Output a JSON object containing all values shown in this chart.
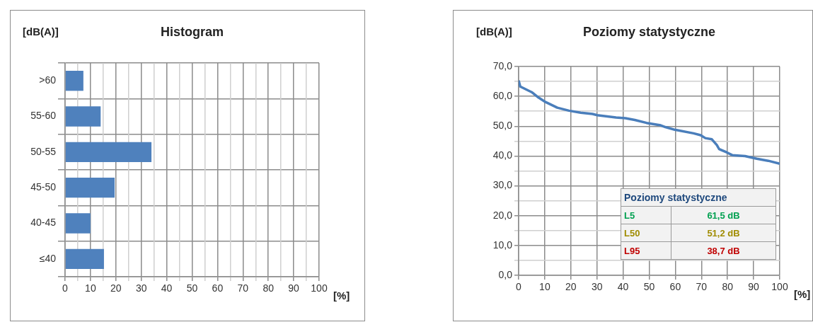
{
  "chart_data": [
    {
      "type": "bar",
      "orientation": "horizontal",
      "title": "Histogram",
      "ylabel": "[dB(A)]",
      "xlabel": "[%]",
      "categories": [
        ">60",
        "55-60",
        "50-55",
        "45-50",
        "40-45",
        "≤40"
      ],
      "series": [
        {
          "color": "#4f81bd",
          "values": [
            7.2,
            14,
            34,
            19.5,
            10,
            15.3
          ]
        }
      ],
      "xlim": [
        0,
        100
      ],
      "xticks": [
        0,
        {
          "value": 5,
          "label": null
        },
        10,
        {
          "value": 15,
          "label": null
        },
        20,
        {
          "value": 25,
          "label": null
        },
        30,
        {
          "value": 35,
          "label": null
        },
        40,
        {
          "value": 45,
          "label": null
        },
        50,
        {
          "value": 55,
          "label": null
        },
        60,
        {
          "value": 65,
          "label": null
        },
        70,
        {
          "value": 75,
          "label": null
        },
        80,
        {
          "value": 85,
          "label": null
        },
        90,
        {
          "value": 95,
          "label": null
        },
        100
      ],
      "grid": true
    },
    {
      "type": "line",
      "title": "Poziomy statystyczne",
      "ylabel": "[dB(A)]",
      "xlabel": "[%]",
      "marker": "none",
      "x": [
        0,
        0.6,
        5,
        7.6,
        10.3,
        14.8,
        19.3,
        23.8,
        28.3,
        30.1,
        37.3,
        40.9,
        44.5,
        49,
        54.4,
        56.2,
        59.8,
        67,
        69.7,
        71.5,
        74,
        75.9,
        76.8,
        79.5,
        81.8,
        86.7,
        91.2,
        95.6,
        100
      ],
      "series": [
        {
          "color": "#4a7ebb",
          "values": [
            65.3,
            63.3,
            61.4,
            59.6,
            58.1,
            56.2,
            55.2,
            54.5,
            54.1,
            53.7,
            52.9,
            52.7,
            52.1,
            51.1,
            50.3,
            49.7,
            48.8,
            47.6,
            47.0,
            46.0,
            45.6,
            43.7,
            42.3,
            41.3,
            40.3,
            40.0,
            39.1,
            38.4,
            37.4
          ]
        }
      ],
      "xlim": [
        0,
        100
      ],
      "xticks": [
        0,
        10,
        20,
        30,
        40,
        50,
        60,
        70,
        80,
        90,
        100
      ],
      "ylim": [
        0,
        70
      ],
      "yticks": [
        {
          "value": 0,
          "label": "0,0"
        },
        {
          "value": 5,
          "label": null
        },
        {
          "value": 10,
          "label": "10,0"
        },
        {
          "value": 15,
          "label": null
        },
        {
          "value": 20,
          "label": "20,0"
        },
        {
          "value": 25,
          "label": null
        },
        {
          "value": 30,
          "label": "30,0"
        },
        {
          "value": 35,
          "label": null
        },
        {
          "value": 40,
          "label": "40,0"
        },
        {
          "value": 45,
          "label": null
        },
        {
          "value": 50,
          "label": "50,0"
        },
        {
          "value": 55,
          "label": null
        },
        {
          "value": 60,
          "label": "60,0"
        },
        {
          "value": 65,
          "label": null
        },
        {
          "value": 70,
          "label": "70,0"
        }
      ],
      "grid": true,
      "annotations": [
        "Poziomy statystyczne",
        "L5",
        "61,5 dB",
        "L50",
        "51,2 dB",
        "L95",
        "38,7 dB"
      ]
    }
  ]
}
